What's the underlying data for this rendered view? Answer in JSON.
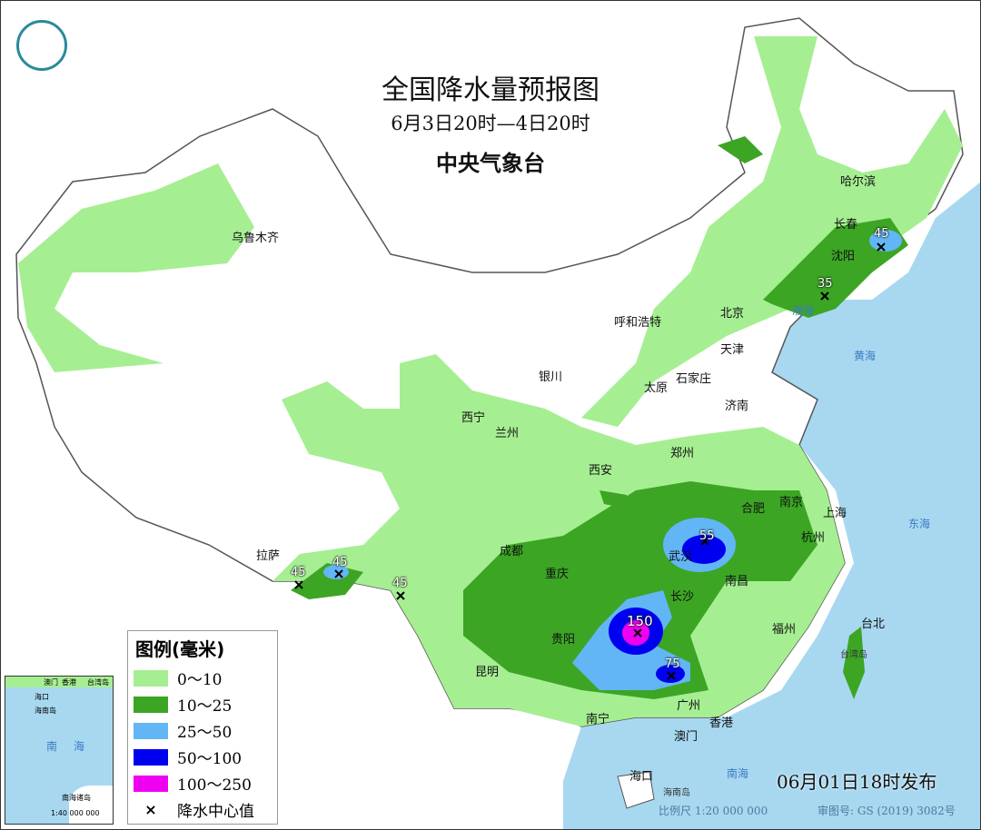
{
  "title": {
    "main": "全国降水量预报图",
    "period": "6月3日20时—4日20时",
    "issuer": "中央气象台"
  },
  "legend": {
    "title": "图例(毫米)",
    "items": [
      {
        "label": "0～10",
        "color": "#a6ee92"
      },
      {
        "label": "10～25",
        "color": "#3ca524"
      },
      {
        "label": "25～50",
        "color": "#62b6f5"
      },
      {
        "label": "50～100",
        "color": "#0000f0"
      },
      {
        "label": "100～250",
        "color": "#f000f0"
      }
    ],
    "center_label": "降水中心值"
  },
  "cities": [
    "乌鲁木齐",
    "哈尔滨",
    "长春",
    "沈阳",
    "呼和浩特",
    "北京",
    "天津",
    "银川",
    "太原",
    "石家庄",
    "济南",
    "西宁",
    "兰州",
    "郑州",
    "西安",
    "合肥",
    "南京",
    "上海",
    "杭州",
    "成都",
    "重庆",
    "武汉",
    "南昌",
    "长沙",
    "拉萨",
    "贵阳",
    "福州",
    "台北",
    "昆明",
    "南宁",
    "广州",
    "澳门",
    "香港",
    "海口"
  ],
  "precip_centers": [
    "45",
    "35",
    "55",
    "150",
    "75",
    "45",
    "45",
    "45"
  ],
  "seas": [
    "渤海",
    "黄海",
    "东海",
    "南海",
    "台湾岛",
    "海南岛"
  ],
  "inset": {
    "labels": [
      "澳门",
      "香港",
      "台湾岛",
      "海口",
      "海南岛",
      "南海",
      "南海诸岛"
    ],
    "scale": "1:40 000 000"
  },
  "footer": {
    "issued": "06月01日18时发布",
    "scale": "比例尺 1:20 000 000",
    "approval": "审图号: GS (2019) 3082号"
  },
  "colors": {
    "sea": "#a8d8f0",
    "land": "#ffffff",
    "border": "#666666"
  }
}
